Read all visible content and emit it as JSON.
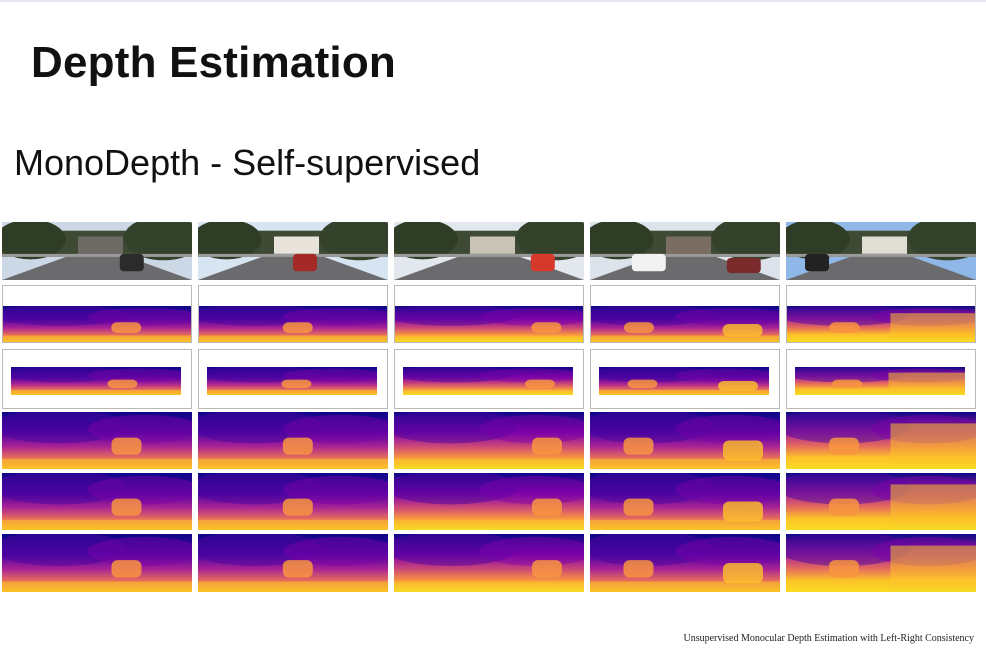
{
  "slide": {
    "title": "Depth Estimation",
    "subtitle": "MonoDepth - Self-supervised",
    "citation": "Unsupervised Monocular Depth Estimation with Left-Right Consistency"
  },
  "figure": {
    "columns": 5,
    "rows": [
      {
        "kind": "input-photo",
        "scenes": [
          "street-road-with-trees",
          "road-with-red-car",
          "parked-red-car-houses",
          "white-van-street",
          "sidewalk-hedge-houses"
        ]
      },
      {
        "kind": "depth-map-framed-top-blank"
      },
      {
        "kind": "depth-map-framed-inset"
      },
      {
        "kind": "depth-map"
      },
      {
        "kind": "depth-map"
      },
      {
        "kind": "depth-map"
      }
    ],
    "colormap": [
      "#0d0887",
      "#4a03a0",
      "#7c02a8",
      "#a82296",
      "#cc4778",
      "#e66c5c",
      "#f89540",
      "#fdc328",
      "#f0f921"
    ]
  }
}
